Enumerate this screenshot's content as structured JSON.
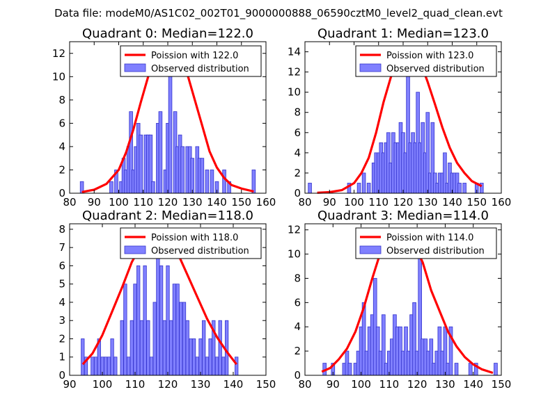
{
  "figure": {
    "suptitle": "Data file: modeM0/AS1C02_002T01_9000000888_06590cztM0_level2_quad_clean.evt"
  },
  "colors": {
    "bar_fill": "#8080ff",
    "bar_edge": "#3333cc",
    "curve": "#ff0000",
    "axes": "#000000",
    "legend_border": "#000000"
  },
  "chart_data": [
    {
      "type": "bar",
      "title": "Quadrant 0: Median=122.0",
      "legend": [
        "Poission with 122.0",
        "Observed distribution"
      ],
      "xlim": [
        80,
        160
      ],
      "ylim": [
        0,
        13
      ],
      "xticks": [
        80,
        90,
        100,
        110,
        120,
        130,
        140,
        150,
        160
      ],
      "yticks": [
        0,
        2,
        4,
        6,
        8,
        10,
        12
      ],
      "bin_width": 1.35,
      "bins": [
        {
          "x": 85,
          "count": 1
        },
        {
          "x": 97,
          "count": 1
        },
        {
          "x": 99,
          "count": 2
        },
        {
          "x": 101,
          "count": 1
        },
        {
          "x": 102,
          "count": 3
        },
        {
          "x": 103,
          "count": 2
        },
        {
          "x": 104,
          "count": 4
        },
        {
          "x": 105,
          "count": 7
        },
        {
          "x": 106,
          "count": 2
        },
        {
          "x": 107,
          "count": 4
        },
        {
          "x": 108,
          "count": 6
        },
        {
          "x": 109,
          "count": 5
        },
        {
          "x": 111,
          "count": 5
        },
        {
          "x": 112,
          "count": 5
        },
        {
          "x": 113,
          "count": 5
        },
        {
          "x": 114,
          "count": 1
        },
        {
          "x": 116,
          "count": 6
        },
        {
          "x": 117,
          "count": 7
        },
        {
          "x": 119,
          "count": 2
        },
        {
          "x": 120,
          "count": 6
        },
        {
          "x": 121,
          "count": 12
        },
        {
          "x": 123,
          "count": 7
        },
        {
          "x": 124,
          "count": 4
        },
        {
          "x": 125,
          "count": 5
        },
        {
          "x": 126,
          "count": 4
        },
        {
          "x": 128,
          "count": 4
        },
        {
          "x": 129,
          "count": 4
        },
        {
          "x": 130,
          "count": 3
        },
        {
          "x": 132,
          "count": 4
        },
        {
          "x": 133,
          "count": 3
        },
        {
          "x": 134,
          "count": 3
        },
        {
          "x": 136,
          "count": 2
        },
        {
          "x": 138,
          "count": 2
        },
        {
          "x": 140,
          "count": 1
        },
        {
          "x": 143,
          "count": 2
        },
        {
          "x": 145,
          "count": 1
        },
        {
          "x": 155,
          "count": 2
        }
      ],
      "poisson_curve": [
        [
          85,
          0.1
        ],
        [
          90,
          0.3
        ],
        [
          95,
          0.8
        ],
        [
          100,
          2.0
        ],
        [
          103,
          3.5
        ],
        [
          106,
          5.5
        ],
        [
          109,
          7.8
        ],
        [
          112,
          10.0
        ],
        [
          115,
          11.6
        ],
        [
          118,
          12.4
        ],
        [
          122,
          12.5
        ],
        [
          125,
          11.6
        ],
        [
          128,
          10.2
        ],
        [
          131,
          8.0
        ],
        [
          134,
          5.8
        ],
        [
          137,
          3.6
        ],
        [
          140,
          2.2
        ],
        [
          143,
          1.3
        ],
        [
          146,
          0.7
        ],
        [
          150,
          0.4
        ],
        [
          155,
          0.15
        ]
      ]
    },
    {
      "type": "bar",
      "title": "Quadrant 1: Median=123.0",
      "legend": [
        "Poission with 123.0",
        "Observed distribution"
      ],
      "xlim": [
        80,
        160
      ],
      "ylim": [
        0,
        15
      ],
      "xticks": [
        80,
        90,
        100,
        110,
        120,
        130,
        140,
        150,
        160
      ],
      "yticks": [
        0,
        2,
        4,
        6,
        8,
        10,
        12,
        14
      ],
      "bin_width": 1.35,
      "bins": [
        {
          "x": 82,
          "count": 1
        },
        {
          "x": 98,
          "count": 1
        },
        {
          "x": 102,
          "count": 1
        },
        {
          "x": 104,
          "count": 2
        },
        {
          "x": 106,
          "count": 1
        },
        {
          "x": 108,
          "count": 3
        },
        {
          "x": 109,
          "count": 4
        },
        {
          "x": 110,
          "count": 4
        },
        {
          "x": 111,
          "count": 5
        },
        {
          "x": 112,
          "count": 4
        },
        {
          "x": 113,
          "count": 5
        },
        {
          "x": 114,
          "count": 6
        },
        {
          "x": 115,
          "count": 3
        },
        {
          "x": 116,
          "count": 6
        },
        {
          "x": 117,
          "count": 5
        },
        {
          "x": 118,
          "count": 5
        },
        {
          "x": 119,
          "count": 7
        },
        {
          "x": 120,
          "count": 6
        },
        {
          "x": 121,
          "count": 4
        },
        {
          "x": 122,
          "count": 13
        },
        {
          "x": 123,
          "count": 5
        },
        {
          "x": 124,
          "count": 6
        },
        {
          "x": 125,
          "count": 5
        },
        {
          "x": 126,
          "count": 10
        },
        {
          "x": 127,
          "count": 5
        },
        {
          "x": 128,
          "count": 7
        },
        {
          "x": 129,
          "count": 4
        },
        {
          "x": 130,
          "count": 8
        },
        {
          "x": 131,
          "count": 2
        },
        {
          "x": 132,
          "count": 7
        },
        {
          "x": 133,
          "count": 2
        },
        {
          "x": 134,
          "count": 1
        },
        {
          "x": 135,
          "count": 2
        },
        {
          "x": 136,
          "count": 2
        },
        {
          "x": 137,
          "count": 4
        },
        {
          "x": 138,
          "count": 1
        },
        {
          "x": 139,
          "count": 3
        },
        {
          "x": 140,
          "count": 2
        },
        {
          "x": 141,
          "count": 2
        },
        {
          "x": 142,
          "count": 2
        },
        {
          "x": 143,
          "count": 1
        },
        {
          "x": 145,
          "count": 1
        },
        {
          "x": 150,
          "count": 1
        },
        {
          "x": 152,
          "count": 1
        }
      ],
      "poisson_curve": [
        [
          85,
          0.05
        ],
        [
          90,
          0.1
        ],
        [
          95,
          0.3
        ],
        [
          100,
          1.0
        ],
        [
          103,
          2.0
        ],
        [
          106,
          3.5
        ],
        [
          109,
          6.0
        ],
        [
          112,
          9.0
        ],
        [
          115,
          11.5
        ],
        [
          118,
          13.0
        ],
        [
          121,
          13.8
        ],
        [
          124,
          14.0
        ],
        [
          127,
          13.0
        ],
        [
          130,
          11.0
        ],
        [
          133,
          8.8
        ],
        [
          136,
          6.5
        ],
        [
          139,
          4.5
        ],
        [
          142,
          3.0
        ],
        [
          145,
          2.0
        ],
        [
          148,
          1.2
        ],
        [
          152,
          0.7
        ]
      ]
    },
    {
      "type": "bar",
      "title": "Quadrant 2: Median=118.0",
      "legend": [
        "Poission with 118.0",
        "Observed distribution"
      ],
      "xlim": [
        90,
        150
      ],
      "ylim": [
        0,
        8.3
      ],
      "xticks": [
        90,
        100,
        110,
        120,
        130,
        140,
        150
      ],
      "yticks": [
        0,
        1,
        2,
        3,
        4,
        5,
        6,
        7,
        8
      ],
      "bin_width": 0.95,
      "bins": [
        {
          "x": 94,
          "count": 2
        },
        {
          "x": 95,
          "count": 1
        },
        {
          "x": 97,
          "count": 1
        },
        {
          "x": 98,
          "count": 1
        },
        {
          "x": 99,
          "count": 2
        },
        {
          "x": 100,
          "count": 1
        },
        {
          "x": 101,
          "count": 1
        },
        {
          "x": 102,
          "count": 1
        },
        {
          "x": 103,
          "count": 2
        },
        {
          "x": 104,
          "count": 1
        },
        {
          "x": 106,
          "count": 3
        },
        {
          "x": 107,
          "count": 5
        },
        {
          "x": 108,
          "count": 1
        },
        {
          "x": 109,
          "count": 3
        },
        {
          "x": 110,
          "count": 5
        },
        {
          "x": 111,
          "count": 6
        },
        {
          "x": 112,
          "count": 3
        },
        {
          "x": 113,
          "count": 6
        },
        {
          "x": 114,
          "count": 3
        },
        {
          "x": 115,
          "count": 1
        },
        {
          "x": 116,
          "count": 4
        },
        {
          "x": 117,
          "count": 8
        },
        {
          "x": 118,
          "count": 6
        },
        {
          "x": 119,
          "count": 3
        },
        {
          "x": 120,
          "count": 6
        },
        {
          "x": 121,
          "count": 3
        },
        {
          "x": 122,
          "count": 5
        },
        {
          "x": 123,
          "count": 5
        },
        {
          "x": 124,
          "count": 4
        },
        {
          "x": 125,
          "count": 4
        },
        {
          "x": 126,
          "count": 3
        },
        {
          "x": 127,
          "count": 2
        },
        {
          "x": 128,
          "count": 2
        },
        {
          "x": 129,
          "count": 1
        },
        {
          "x": 130,
          "count": 2
        },
        {
          "x": 131,
          "count": 3
        },
        {
          "x": 132,
          "count": 1
        },
        {
          "x": 133,
          "count": 2
        },
        {
          "x": 134,
          "count": 3
        },
        {
          "x": 135,
          "count": 1
        },
        {
          "x": 136,
          "count": 3
        },
        {
          "x": 137,
          "count": 1
        },
        {
          "x": 138,
          "count": 3
        },
        {
          "x": 141,
          "count": 1
        }
      ],
      "poisson_curve": [
        [
          94,
          0.6
        ],
        [
          97,
          1.2
        ],
        [
          100,
          2.2
        ],
        [
          103,
          3.5
        ],
        [
          106,
          4.8
        ],
        [
          109,
          6.2
        ],
        [
          112,
          7.2
        ],
        [
          115,
          7.9
        ],
        [
          117,
          8.0
        ],
        [
          120,
          7.6
        ],
        [
          123,
          6.7
        ],
        [
          126,
          5.5
        ],
        [
          129,
          4.3
        ],
        [
          132,
          3.1
        ],
        [
          135,
          2.1
        ],
        [
          138,
          1.3
        ],
        [
          141,
          0.6
        ]
      ]
    },
    {
      "type": "bar",
      "title": "Quadrant 3: Median=114.0",
      "legend": [
        "Poission with 114.0",
        "Observed distribution"
      ],
      "xlim": [
        80,
        150
      ],
      "ylim": [
        0,
        12.5
      ],
      "xticks": [
        80,
        90,
        100,
        110,
        120,
        130,
        140,
        150
      ],
      "yticks": [
        0,
        2,
        4,
        6,
        8,
        10,
        12
      ],
      "bin_width": 1.2,
      "bins": [
        {
          "x": 87,
          "count": 1
        },
        {
          "x": 90,
          "count": 1
        },
        {
          "x": 94,
          "count": 1
        },
        {
          "x": 95,
          "count": 2
        },
        {
          "x": 96,
          "count": 1
        },
        {
          "x": 98,
          "count": 1
        },
        {
          "x": 99,
          "count": 2
        },
        {
          "x": 100,
          "count": 4
        },
        {
          "x": 101,
          "count": 6
        },
        {
          "x": 102,
          "count": 2
        },
        {
          "x": 103,
          "count": 4
        },
        {
          "x": 104,
          "count": 5
        },
        {
          "x": 105,
          "count": 8
        },
        {
          "x": 106,
          "count": 4
        },
        {
          "x": 107,
          "count": 2
        },
        {
          "x": 108,
          "count": 5
        },
        {
          "x": 109,
          "count": 1
        },
        {
          "x": 110,
          "count": 2
        },
        {
          "x": 111,
          "count": 3
        },
        {
          "x": 112,
          "count": 5
        },
        {
          "x": 113,
          "count": 4
        },
        {
          "x": 114,
          "count": 4
        },
        {
          "x": 115,
          "count": 2
        },
        {
          "x": 116,
          "count": 4
        },
        {
          "x": 117,
          "count": 2
        },
        {
          "x": 118,
          "count": 5
        },
        {
          "x": 119,
          "count": 6
        },
        {
          "x": 120,
          "count": 2
        },
        {
          "x": 121,
          "count": 11
        },
        {
          "x": 122,
          "count": 3
        },
        {
          "x": 123,
          "count": 3
        },
        {
          "x": 124,
          "count": 2
        },
        {
          "x": 125,
          "count": 3
        },
        {
          "x": 126,
          "count": 1
        },
        {
          "x": 127,
          "count": 2
        },
        {
          "x": 128,
          "count": 4
        },
        {
          "x": 129,
          "count": 2
        },
        {
          "x": 130,
          "count": 4
        },
        {
          "x": 131,
          "count": 1
        },
        {
          "x": 132,
          "count": 4
        },
        {
          "x": 134,
          "count": 1
        },
        {
          "x": 139,
          "count": 1
        },
        {
          "x": 141,
          "count": 1
        },
        {
          "x": 148,
          "count": 1
        }
      ],
      "poisson_curve": [
        [
          86,
          0.3
        ],
        [
          89,
          0.6
        ],
        [
          92,
          1.3
        ],
        [
          95,
          2.2
        ],
        [
          98,
          3.6
        ],
        [
          101,
          5.6
        ],
        [
          104,
          8.0
        ],
        [
          107,
          10.2
        ],
        [
          110,
          11.6
        ],
        [
          113,
          12.0
        ],
        [
          116,
          11.8
        ],
        [
          119,
          10.8
        ],
        [
          122,
          9.3
        ],
        [
          125,
          7.0
        ],
        [
          128,
          5.3
        ],
        [
          131,
          3.6
        ],
        [
          134,
          2.4
        ],
        [
          137,
          1.5
        ],
        [
          140,
          0.9
        ],
        [
          143,
          0.5
        ],
        [
          147,
          0.2
        ]
      ]
    }
  ]
}
